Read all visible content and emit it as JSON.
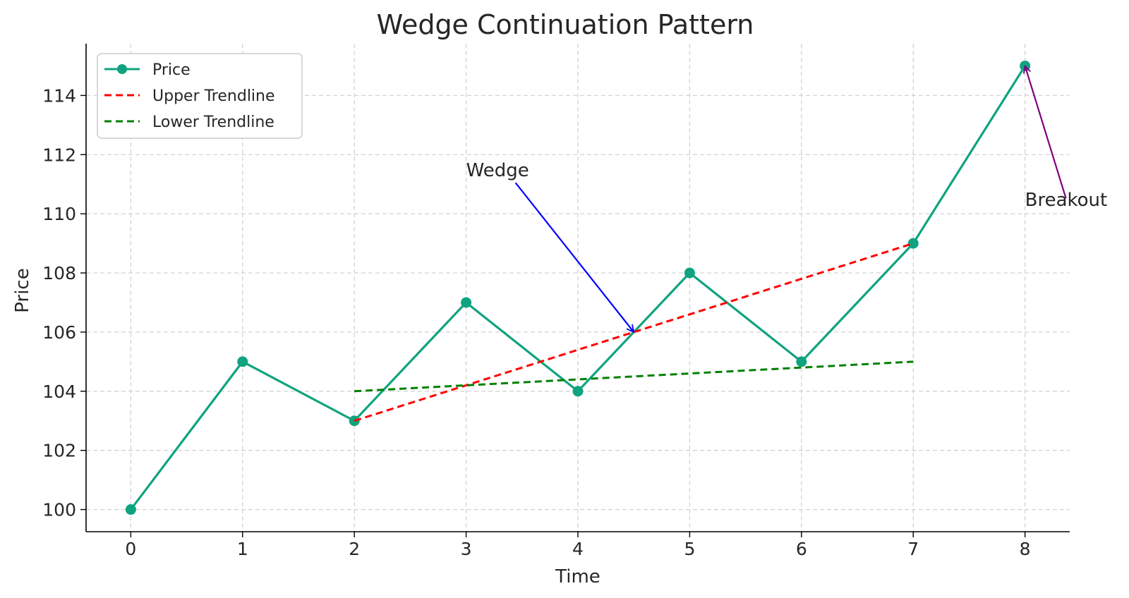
{
  "chart_data": {
    "type": "line",
    "title": "Wedge Continuation Pattern",
    "xlabel": "Time",
    "ylabel": "Price",
    "xlim": [
      -0.4,
      8.4
    ],
    "ylim": [
      99.25,
      115.75
    ],
    "xticks": [
      0,
      1,
      2,
      3,
      4,
      5,
      6,
      7,
      8
    ],
    "yticks": [
      100,
      102,
      104,
      106,
      108,
      110,
      112,
      114
    ],
    "grid": true,
    "legend_position": "top-left",
    "series": [
      {
        "name": "Price",
        "style": "solid",
        "marker": "circle",
        "color": "#10a37f",
        "x": [
          0,
          1,
          2,
          3,
          4,
          5,
          6,
          7,
          8
        ],
        "y": [
          100,
          105,
          103,
          107,
          104,
          108,
          105,
          109,
          115
        ]
      },
      {
        "name": "Upper Trendline",
        "style": "dashed",
        "color": "#ff0000",
        "x": [
          2,
          7
        ],
        "y": [
          103,
          109
        ]
      },
      {
        "name": "Lower Trendline",
        "style": "dashed",
        "color": "#008000",
        "x": [
          2,
          7
        ],
        "y": [
          104,
          105
        ]
      }
    ],
    "annotations": [
      {
        "text": "Wedge",
        "text_x": 3.0,
        "text_y": 111,
        "arrow_x": 4.5,
        "arrow_y": 106,
        "color": "#0000ff"
      },
      {
        "text": "Breakout",
        "text_x": 8.0,
        "text_y": 110,
        "arrow_x": 8.0,
        "arrow_y": 115,
        "color": "#800080"
      }
    ]
  }
}
